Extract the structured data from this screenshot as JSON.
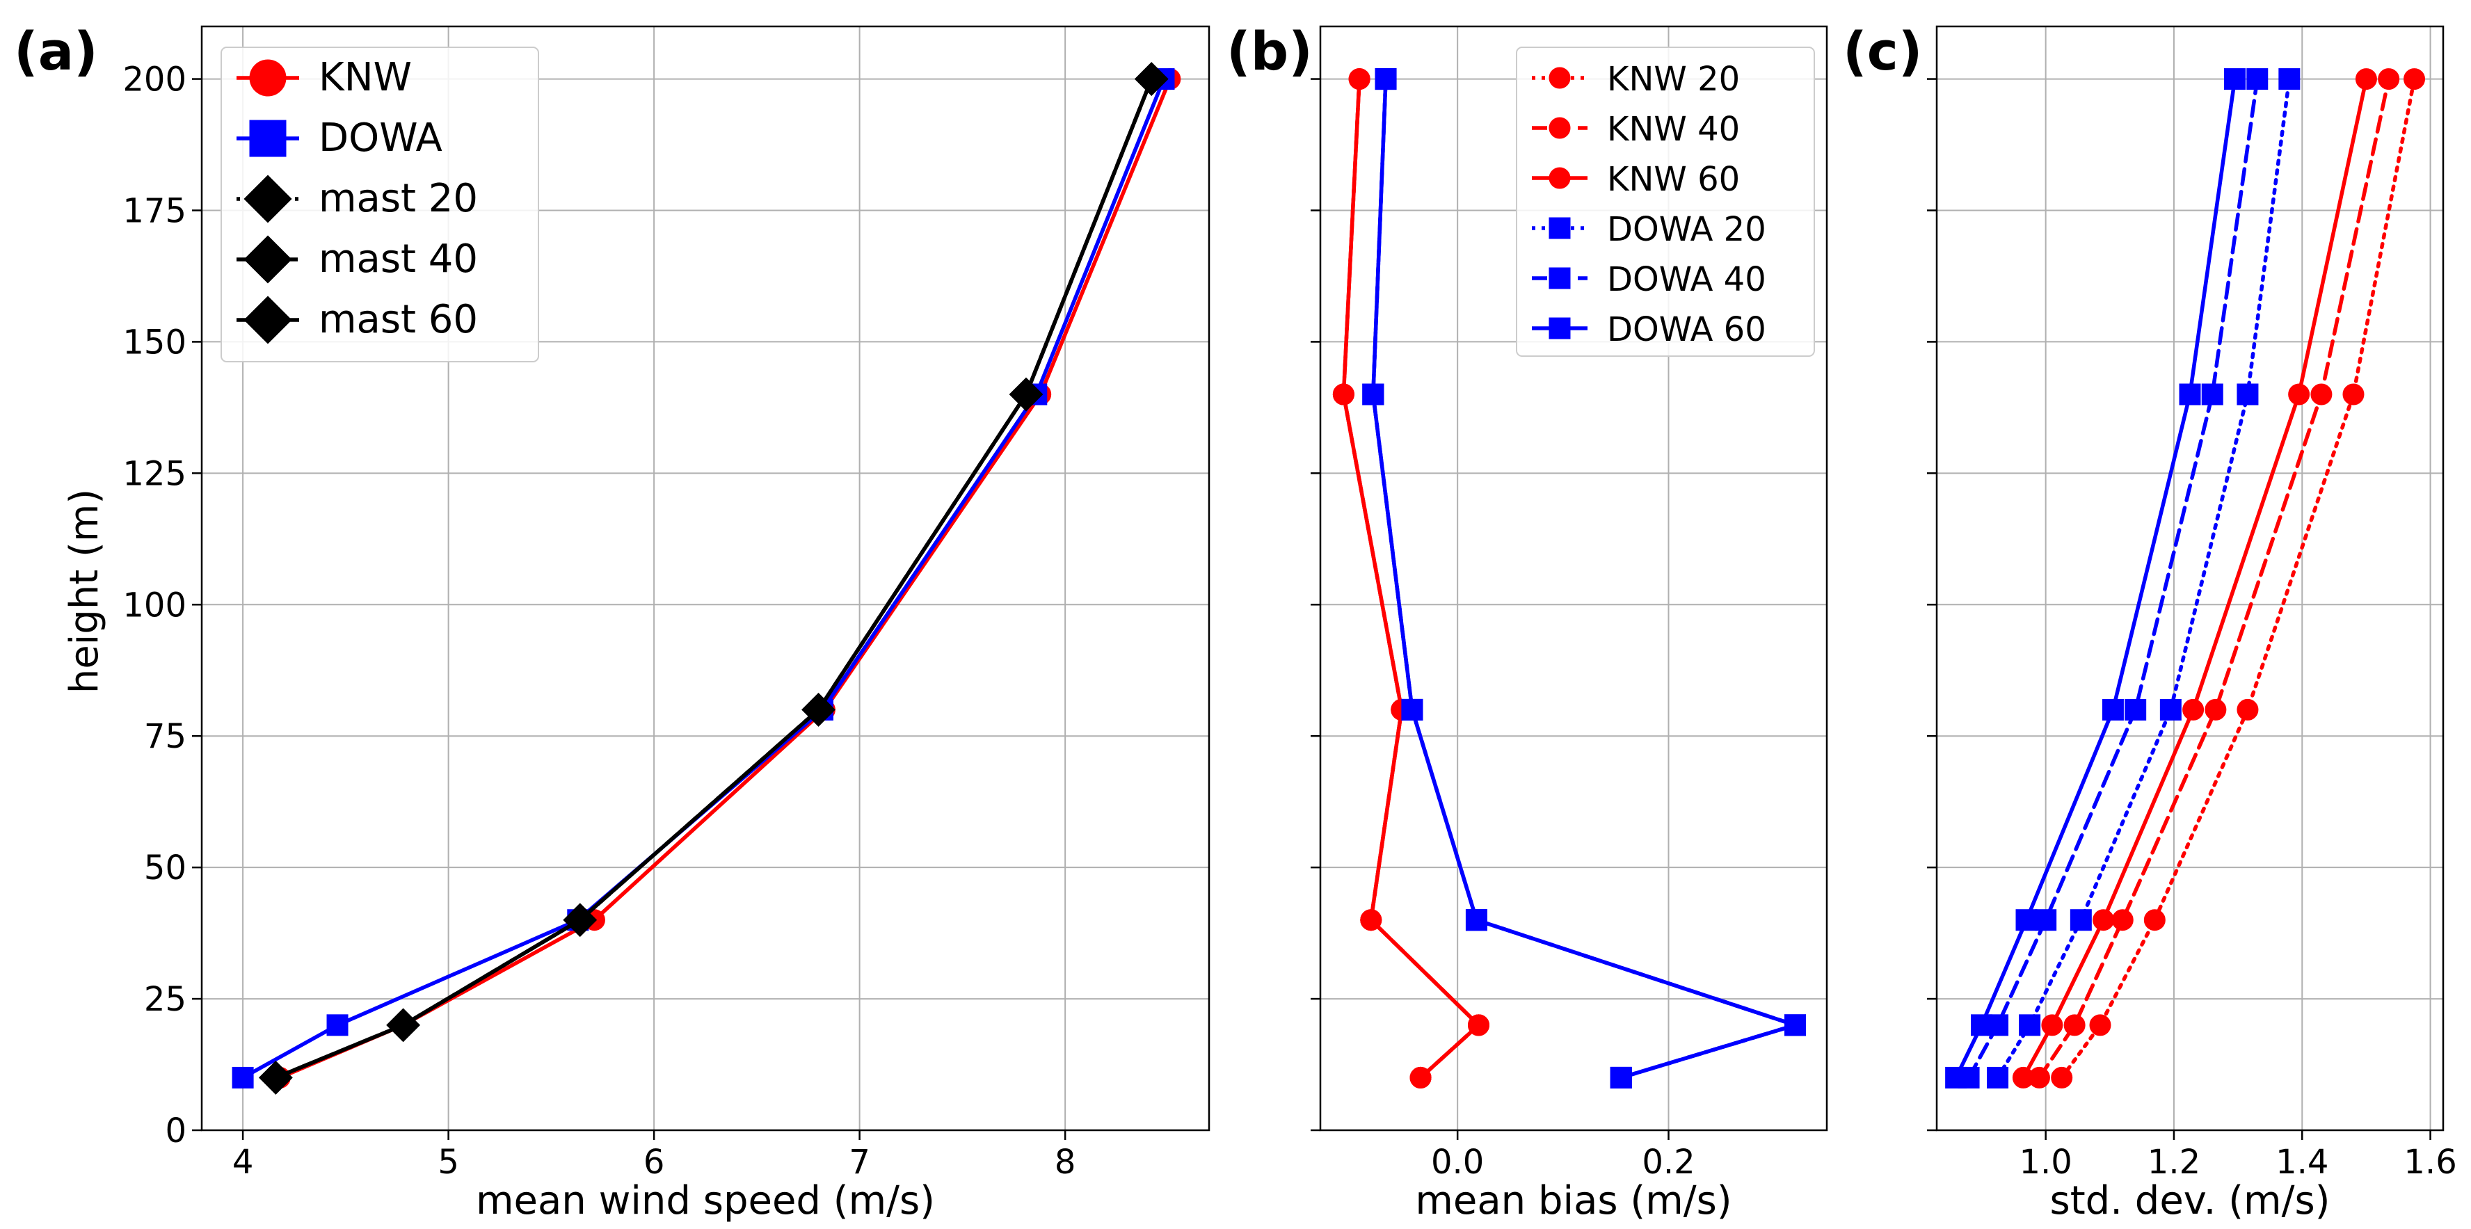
{
  "figure": {
    "ylabel": "height (m)"
  },
  "chart_data": [
    {
      "panel": "(a)",
      "type": "line",
      "title": "",
      "xlabel": "mean wind speed (m/s)",
      "ylabel": "height (m)",
      "xlim": [
        3.8,
        8.7
      ],
      "ylim": [
        0,
        210
      ],
      "xticks": [
        4,
        5,
        6,
        7,
        8
      ],
      "xtick_labels": [
        "4",
        "5",
        "6",
        "7",
        "8"
      ],
      "yticks": [
        0,
        25,
        50,
        75,
        100,
        125,
        150,
        175,
        200
      ],
      "ytick_labels": [
        "0",
        "25",
        "50",
        "75",
        "100",
        "125",
        "150",
        "175",
        "200"
      ],
      "grid": true,
      "legend_position": "top-left",
      "series": [
        {
          "name": "KNW",
          "color": "#ff0000",
          "linestyle": "solid",
          "marker": "circle",
          "x": [
            4.18,
            4.78,
            5.71,
            6.83,
            7.88,
            8.51
          ],
          "y": [
            10,
            20,
            40,
            80,
            140,
            200
          ]
        },
        {
          "name": "DOWA",
          "color": "#0000ff",
          "linestyle": "solid",
          "marker": "square",
          "x": [
            4.0,
            4.46,
            5.63,
            6.82,
            7.86,
            8.48
          ],
          "y": [
            10,
            20,
            40,
            80,
            140,
            200
          ]
        },
        {
          "name": "mast 20",
          "color": "#000000",
          "linestyle": "dotted",
          "marker": "diamond",
          "x": [
            4.16,
            4.78,
            5.64,
            6.8,
            7.81,
            8.42
          ],
          "y": [
            10,
            20,
            40,
            80,
            140,
            200
          ]
        },
        {
          "name": "mast 40",
          "color": "#000000",
          "linestyle": "dashed",
          "marker": "diamond",
          "x": [
            4.16,
            4.78,
            5.64,
            6.8,
            7.81,
            8.42
          ],
          "y": [
            10,
            20,
            40,
            80,
            140,
            200
          ]
        },
        {
          "name": "mast 60",
          "color": "#000000",
          "linestyle": "solid",
          "marker": "diamond",
          "x": [
            4.16,
            4.78,
            5.64,
            6.8,
            7.81,
            8.42
          ],
          "y": [
            10,
            20,
            40,
            80,
            140,
            200
          ]
        }
      ]
    },
    {
      "panel": "(b)",
      "type": "line",
      "title": "",
      "xlabel": "mean bias (m/s)",
      "ylabel": "",
      "xlim": [
        -0.13,
        0.35
      ],
      "ylim": [
        0,
        210
      ],
      "xticks": [
        0.0,
        0.2
      ],
      "xtick_labels": [
        "0.0",
        "0.2"
      ],
      "yticks": [
        0,
        25,
        50,
        75,
        100,
        125,
        150,
        175,
        200
      ],
      "ytick_labels": [],
      "grid": true,
      "legend_position": "top-right",
      "series": [
        {
          "name": "KNW 20",
          "color": "#ff0000",
          "linestyle": "dotted",
          "marker": "circle",
          "x": [
            -0.035,
            0.02,
            -0.082,
            -0.053,
            -0.108,
            -0.093
          ],
          "y": [
            10,
            20,
            40,
            80,
            140,
            200
          ]
        },
        {
          "name": "KNW 40",
          "color": "#ff0000",
          "linestyle": "dashed",
          "marker": "circle",
          "x": [
            -0.035,
            0.02,
            -0.082,
            -0.053,
            -0.108,
            -0.093
          ],
          "y": [
            10,
            20,
            40,
            80,
            140,
            200
          ]
        },
        {
          "name": "KNW 60",
          "color": "#ff0000",
          "linestyle": "solid",
          "marker": "circle",
          "x": [
            -0.035,
            0.02,
            -0.082,
            -0.053,
            -0.108,
            -0.093
          ],
          "y": [
            10,
            20,
            40,
            80,
            140,
            200
          ]
        },
        {
          "name": "DOWA 20",
          "color": "#0000ff",
          "linestyle": "dotted",
          "marker": "square",
          "x": [
            0.155,
            0.32,
            0.018,
            -0.043,
            -0.08,
            -0.068
          ],
          "y": [
            10,
            20,
            40,
            80,
            140,
            200
          ]
        },
        {
          "name": "DOWA 40",
          "color": "#0000ff",
          "linestyle": "dashed",
          "marker": "square",
          "x": [
            0.155,
            0.32,
            0.018,
            -0.043,
            -0.08,
            -0.068
          ],
          "y": [
            10,
            20,
            40,
            80,
            140,
            200
          ]
        },
        {
          "name": "DOWA 60",
          "color": "#0000ff",
          "linestyle": "solid",
          "marker": "square",
          "x": [
            0.155,
            0.32,
            0.018,
            -0.043,
            -0.08,
            -0.068
          ],
          "y": [
            10,
            20,
            40,
            80,
            140,
            200
          ]
        }
      ]
    },
    {
      "panel": "(c)",
      "type": "line",
      "title": "",
      "xlabel": "std. dev. (m/s)",
      "ylabel": "",
      "xlim": [
        0.83,
        1.62
      ],
      "ylim": [
        0,
        210
      ],
      "xticks": [
        1.0,
        1.2,
        1.4,
        1.6
      ],
      "xtick_labels": [
        "1.0",
        "1.2",
        "1.4",
        "1.6"
      ],
      "yticks": [
        0,
        25,
        50,
        75,
        100,
        125,
        150,
        175,
        200
      ],
      "ytick_labels": [],
      "grid": true,
      "legend_position": "none",
      "series": [
        {
          "name": "KNW 20",
          "color": "#ff0000",
          "linestyle": "dotted",
          "marker": "circle",
          "x": [
            1.025,
            1.085,
            1.17,
            1.315,
            1.48,
            1.575
          ],
          "y": [
            10,
            20,
            40,
            80,
            140,
            200
          ]
        },
        {
          "name": "KNW 40",
          "color": "#ff0000",
          "linestyle": "dashed",
          "marker": "circle",
          "x": [
            0.99,
            1.045,
            1.12,
            1.265,
            1.43,
            1.535
          ],
          "y": [
            10,
            20,
            40,
            80,
            140,
            200
          ]
        },
        {
          "name": "KNW 60",
          "color": "#ff0000",
          "linestyle": "solid",
          "marker": "circle",
          "x": [
            0.965,
            1.01,
            1.09,
            1.23,
            1.395,
            1.5
          ],
          "y": [
            10,
            20,
            40,
            80,
            140,
            200
          ]
        },
        {
          "name": "DOWA 20",
          "color": "#0000ff",
          "linestyle": "dotted",
          "marker": "square",
          "x": [
            0.925,
            0.975,
            1.055,
            1.195,
            1.315,
            1.38
          ],
          "y": [
            10,
            20,
            40,
            80,
            140,
            200
          ]
        },
        {
          "name": "DOWA 40",
          "color": "#0000ff",
          "linestyle": "dashed",
          "marker": "square",
          "x": [
            0.88,
            0.925,
            1.0,
            1.14,
            1.26,
            1.33
          ],
          "y": [
            10,
            20,
            40,
            80,
            140,
            200
          ]
        },
        {
          "name": "DOWA 60",
          "color": "#0000ff",
          "linestyle": "solid",
          "marker": "square",
          "x": [
            0.86,
            0.9,
            0.97,
            1.105,
            1.225,
            1.295
          ],
          "y": [
            10,
            20,
            40,
            80,
            140,
            200
          ]
        }
      ]
    }
  ]
}
